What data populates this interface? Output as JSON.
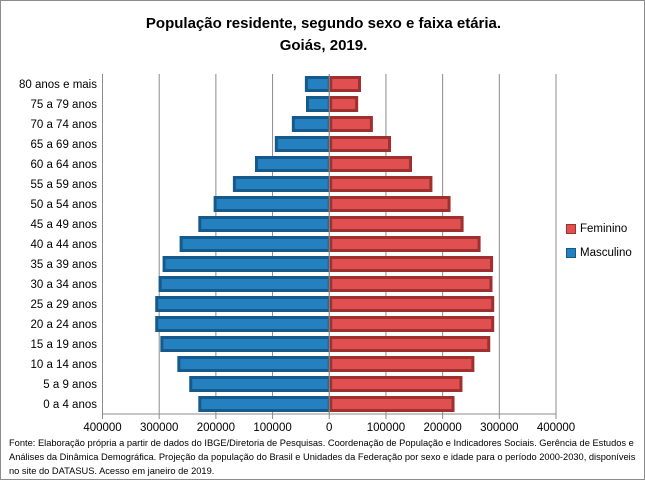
{
  "chart_data": {
    "type": "bar",
    "orientation": "horizontal-pyramid",
    "title": "População residente, segundo sexo e faixa etária.",
    "subtitle": "Goiás, 2019.",
    "categories": [
      "0 a 4 anos",
      "5 a 9 anos",
      "10 a 14 anos",
      "15 a 19 anos",
      "20 a 24 anos",
      "25 a 29 anos",
      "30 a 34 anos",
      "35 a 39 anos",
      "40 a 44 anos",
      "45 a 49 anos",
      "50 a 54 anos",
      "55 a 59 anos",
      "60 a 64 anos",
      "65 a 69 anos",
      "70 a 74 anos",
      "75 a 79 anos",
      "80 anos e mais"
    ],
    "series": [
      {
        "name": "Feminino",
        "side": "right",
        "color": "#e05050",
        "values": [
          221000,
          235000,
          256000,
          284000,
          291000,
          291000,
          288000,
          289000,
          267000,
          237000,
          214000,
          182000,
          146000,
          109000,
          77000,
          51000,
          56000
        ]
      },
      {
        "name": "Masculino",
        "side": "left",
        "color": "#2580c0",
        "values": [
          231000,
          247000,
          268000,
          298000,
          307000,
          307000,
          301000,
          294000,
          264000,
          231000,
          204000,
          170000,
          131000,
          96000,
          66000,
          41000,
          43000
        ]
      }
    ],
    "x_ticks": [
      "400000",
      "300000",
      "200000",
      "100000",
      "0",
      "100000",
      "200000",
      "300000",
      "400000"
    ],
    "xlim": [
      -400000,
      400000
    ],
    "grid": true,
    "legend_position": "right"
  },
  "source": "Fonte:  Elaboração própria a partir de dados  do  IBGE/Diretoria de Pesquisas. Coordenação de População e Indicadores Sociais. Gerência de Estudos e Análises da Dinâmica Demográfica. Projeção da população do Brasil e Unidades da Federação por sexo e idade para o período 2000-2030, disponíveis no site do DATASUS. Acesso em  janeiro de 2019."
}
